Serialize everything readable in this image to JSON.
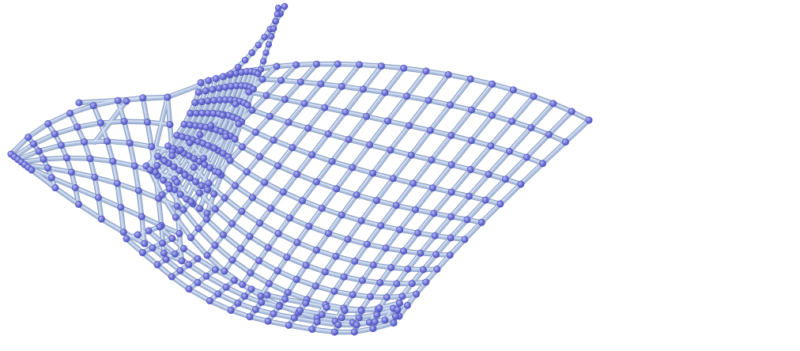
{
  "figure": {
    "kind": "3d-graph-rendering",
    "style": "tube edges with sphere vertices",
    "background_color": "#ffffff",
    "edge_color": "#aebfde",
    "edge_highlight_color": "#d6e2f3",
    "edge_shadow_color": "#7f94bd",
    "vertex_color": "#6f73d9",
    "vertex_highlight_color": "#b8baf3",
    "vertex_shadow_color": "#4c4fb5"
  }
}
